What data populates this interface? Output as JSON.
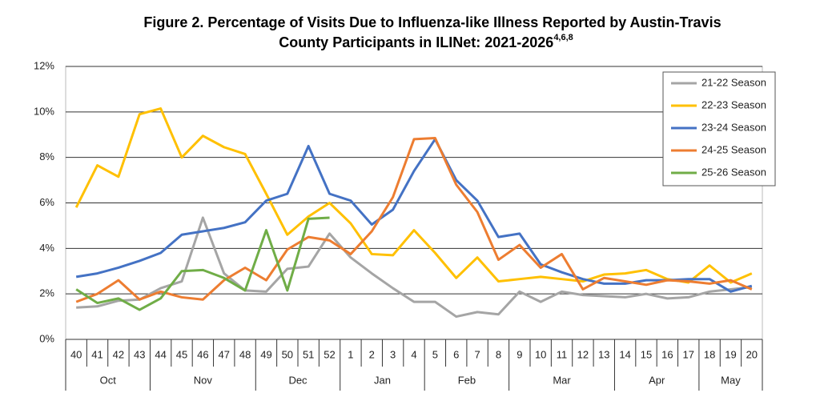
{
  "chart_data": {
    "type": "line",
    "title": [
      "Figure 2. Percentage of Visits Due to Influenza-like Illness Reported by Austin-Travis",
      "County Participants in ILINet: 2021-2026"
    ],
    "title_superscript": "4,6,8",
    "categories": [
      "40",
      "41",
      "42",
      "43",
      "44",
      "45",
      "46",
      "47",
      "48",
      "49",
      "50",
      "51",
      "52",
      "1",
      "2",
      "3",
      "4",
      "5",
      "6",
      "7",
      "8",
      "9",
      "10",
      "11",
      "12",
      "13",
      "14",
      "15",
      "16",
      "17",
      "18",
      "19",
      "20"
    ],
    "months": [
      "Oct",
      "Nov",
      "Dec",
      "Jan",
      "Feb",
      "Mar",
      "Apr",
      "May"
    ],
    "month_spans": [
      4,
      5,
      4,
      4,
      4,
      5,
      4,
      3
    ],
    "ylim": [
      0,
      12
    ],
    "yticks": [
      {
        "value": 0,
        "label": "0%"
      },
      {
        "value": 2,
        "label": "2%"
      },
      {
        "value": 4,
        "label": "4%"
      },
      {
        "value": 6,
        "label": "6%"
      },
      {
        "value": 8,
        "label": "8%"
      },
      {
        "value": 10,
        "label": "10%"
      },
      {
        "value": 12,
        "label": "12%"
      }
    ],
    "grid": true,
    "legend": "upper right",
    "series": [
      {
        "name": "21-22 Season",
        "color": "#a5a5a5",
        "values": [
          1.4,
          1.45,
          1.7,
          1.75,
          2.25,
          2.55,
          5.35,
          2.9,
          2.15,
          2.1,
          3.1,
          3.2,
          4.65,
          3.6,
          2.9,
          2.25,
          1.65,
          1.65,
          1.0,
          1.2,
          1.1,
          2.1,
          1.65,
          2.1,
          1.95,
          1.9,
          1.85,
          2.0,
          1.8,
          1.85,
          2.1,
          2.2,
          2.3
        ]
      },
      {
        "name": "22-23 Season",
        "color": "#ffc000",
        "values": [
          5.8,
          7.65,
          7.15,
          9.9,
          10.15,
          8.0,
          8.95,
          8.45,
          8.15,
          6.4,
          4.6,
          5.4,
          6.0,
          5.1,
          3.75,
          3.7,
          4.8,
          3.8,
          2.7,
          3.6,
          2.55,
          2.65,
          2.75,
          2.65,
          2.55,
          2.85,
          2.9,
          3.05,
          2.65,
          2.5,
          3.25,
          2.5,
          2.9
        ]
      },
      {
        "name": "23-24 Season",
        "color": "#4472c4",
        "values": [
          2.75,
          2.9,
          3.15,
          3.45,
          3.8,
          4.6,
          4.75,
          4.9,
          5.15,
          6.1,
          6.4,
          8.5,
          6.4,
          6.1,
          5.05,
          5.7,
          7.4,
          8.8,
          7.0,
          6.1,
          4.5,
          4.65,
          3.3,
          2.95,
          2.65,
          2.45,
          2.45,
          2.6,
          2.6,
          2.65,
          2.65,
          2.1,
          2.35
        ]
      },
      {
        "name": "24-25 Season",
        "color": "#ed7d31",
        "values": [
          1.65,
          2.0,
          2.6,
          1.75,
          2.1,
          1.85,
          1.75,
          2.6,
          3.15,
          2.6,
          3.95,
          4.5,
          4.35,
          3.75,
          4.75,
          6.25,
          8.8,
          8.85,
          6.8,
          5.6,
          3.5,
          4.15,
          3.15,
          3.75,
          2.2,
          2.7,
          2.55,
          2.4,
          2.6,
          2.55,
          2.45,
          2.6,
          2.2
        ]
      },
      {
        "name": "25-26 Season",
        "color": "#70ad47",
        "values": [
          2.2,
          1.6,
          1.8,
          1.3,
          1.8,
          3.0,
          3.05,
          2.7,
          2.15,
          4.8,
          2.15,
          5.3,
          5.35,
          null,
          null,
          null,
          null,
          null,
          null,
          null,
          null,
          null,
          null,
          null,
          null,
          null,
          null,
          null,
          null,
          null,
          null,
          null,
          null
        ]
      }
    ]
  }
}
